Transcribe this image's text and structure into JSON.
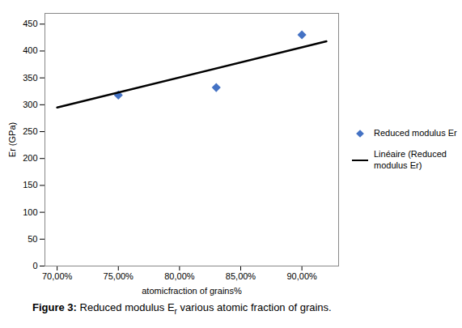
{
  "chart_data": {
    "type": "scatter",
    "xlabel": "atomicfraction of grains%",
    "ylabel": "Er (GPa)",
    "caption": [
      {
        "text": "Figure 3:",
        "style": "bold"
      },
      {
        "text": " Reduced modulus E",
        "style": "normal"
      },
      {
        "text": "r",
        "style": "subscript"
      },
      {
        "text": " various atomic fraction of grains.",
        "style": "normal"
      }
    ],
    "series": [
      {
        "name": "Reduced modulus Er",
        "type": "scatter",
        "marker": "diamond",
        "color": "#4472C4",
        "x": [
          0.75,
          0.83,
          0.9
        ],
        "values": [
          318,
          332,
          430
        ]
      },
      {
        "name": "Linéaire (Reduced\nmodulus Er)",
        "type": "line",
        "line_style": "solid",
        "color": "#000000",
        "x": [
          0.7,
          0.92
        ],
        "values": [
          295,
          418
        ]
      }
    ],
    "xlim": [
      0.69,
      0.93
    ],
    "ylim": [
      0,
      470
    ],
    "xticks": [
      {
        "value": 0.7,
        "label": "70,00%"
      },
      {
        "value": 0.75,
        "label": "75,00%"
      },
      {
        "value": 0.8,
        "label": "80,00%"
      },
      {
        "value": 0.85,
        "label": "85,00%"
      },
      {
        "value": 0.9,
        "label": "90,00%"
      }
    ],
    "yticks": [
      0,
      50,
      100,
      150,
      200,
      250,
      300,
      350,
      400,
      450
    ],
    "legend": "right"
  }
}
